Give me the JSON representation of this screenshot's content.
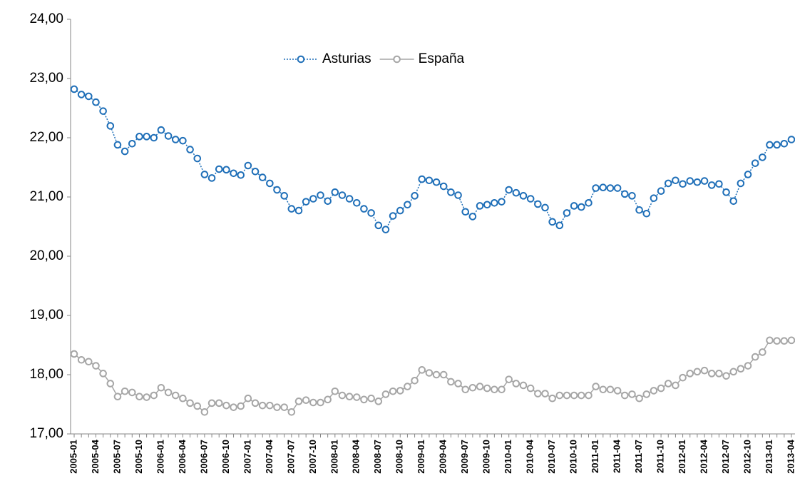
{
  "chart_data": {
    "type": "line",
    "categories": [
      "2005-01",
      null,
      null,
      "2005-04",
      null,
      null,
      "2005-07",
      null,
      null,
      "2005-10",
      null,
      null,
      "2006-01",
      null,
      null,
      "2006-04",
      null,
      null,
      "2006-07",
      null,
      null,
      "2006-10",
      null,
      null,
      "2007-01",
      null,
      null,
      "2007-04",
      null,
      null,
      "2007-07",
      null,
      null,
      "2007-10",
      null,
      null,
      "2008-01",
      null,
      null,
      "2008-04",
      null,
      null,
      "2008-07",
      null,
      null,
      "2008-10",
      null,
      null,
      "2009-01",
      null,
      null,
      "2009-04",
      null,
      null,
      "2009-07",
      null,
      null,
      "2009-10",
      null,
      null,
      "2010-01",
      null,
      null,
      "2010-04",
      null,
      null,
      "2010-07",
      null,
      null,
      "2010-10",
      null,
      null,
      "2011-01",
      null,
      null,
      "2011-04",
      null,
      null,
      "2011-07",
      null,
      null,
      "2011-10",
      null,
      null,
      "2012-01",
      null,
      null,
      "2012-04",
      null,
      null,
      "2012-07",
      null,
      null,
      "2012-10",
      null,
      null,
      "2013-01",
      null,
      null,
      "2013-04"
    ],
    "series": [
      {
        "name": "Asturias",
        "color": "#1f6fb8",
        "line_style": "dotted",
        "values": [
          22.82,
          22.73,
          22.7,
          22.6,
          22.45,
          22.2,
          21.88,
          21.77,
          21.9,
          22.02,
          22.02,
          22.0,
          22.13,
          22.03,
          21.97,
          21.95,
          21.8,
          21.65,
          21.38,
          21.32,
          21.47,
          21.46,
          21.4,
          21.37,
          21.53,
          21.43,
          21.33,
          21.23,
          21.12,
          21.02,
          20.8,
          20.77,
          20.92,
          20.97,
          21.03,
          20.93,
          21.08,
          21.03,
          20.97,
          20.9,
          20.8,
          20.73,
          20.52,
          20.45,
          20.68,
          20.77,
          20.87,
          21.02,
          21.3,
          21.28,
          21.25,
          21.18,
          21.08,
          21.03,
          20.75,
          20.67,
          20.85,
          20.87,
          20.9,
          20.92,
          21.12,
          21.07,
          21.02,
          20.97,
          20.88,
          20.82,
          20.58,
          20.52,
          20.73,
          20.85,
          20.83,
          20.9,
          21.15,
          21.16,
          21.15,
          21.15,
          21.05,
          21.02,
          20.78,
          20.72,
          20.98,
          21.1,
          21.23,
          21.28,
          21.22,
          21.27,
          21.25,
          21.27,
          21.2,
          21.22,
          21.08,
          20.93,
          21.23,
          21.38,
          21.57,
          21.67,
          21.88,
          21.88,
          21.9,
          21.97
        ]
      },
      {
        "name": "España",
        "color": "#a6a6a6",
        "line_style": "solid",
        "values": [
          18.35,
          18.25,
          18.22,
          18.15,
          18.02,
          17.85,
          17.63,
          17.72,
          17.7,
          17.63,
          17.62,
          17.65,
          17.78,
          17.7,
          17.65,
          17.6,
          17.52,
          17.47,
          17.37,
          17.52,
          17.52,
          17.48,
          17.45,
          17.47,
          17.6,
          17.52,
          17.48,
          17.48,
          17.45,
          17.45,
          17.37,
          17.55,
          17.57,
          17.53,
          17.53,
          17.58,
          17.72,
          17.65,
          17.63,
          17.62,
          17.58,
          17.6,
          17.55,
          17.67,
          17.72,
          17.73,
          17.8,
          17.9,
          18.08,
          18.03,
          18.0,
          18.0,
          17.88,
          17.85,
          17.75,
          17.78,
          17.8,
          17.77,
          17.75,
          17.75,
          17.92,
          17.85,
          17.82,
          17.77,
          17.68,
          17.68,
          17.6,
          17.65,
          17.65,
          17.65,
          17.65,
          17.65,
          17.8,
          17.75,
          17.75,
          17.73,
          17.65,
          17.67,
          17.6,
          17.67,
          17.73,
          17.77,
          17.85,
          17.82,
          17.95,
          18.02,
          18.05,
          18.07,
          18.02,
          18.02,
          17.98,
          18.05,
          18.1,
          18.15,
          18.3,
          18.38,
          18.58,
          18.57,
          18.57,
          18.58
        ]
      }
    ],
    "ylim": [
      17,
      24
    ],
    "yticks": [
      {
        "value": 17,
        "label": "17,00"
      },
      {
        "value": 18,
        "label": "18,00"
      },
      {
        "value": 19,
        "label": "19,00"
      },
      {
        "value": 20,
        "label": "20,00"
      },
      {
        "value": 21,
        "label": "21,00"
      },
      {
        "value": 22,
        "label": "22,00"
      },
      {
        "value": 23,
        "label": "23,00"
      },
      {
        "value": 24,
        "label": "24,00"
      }
    ],
    "grid": false,
    "legend": "top"
  }
}
